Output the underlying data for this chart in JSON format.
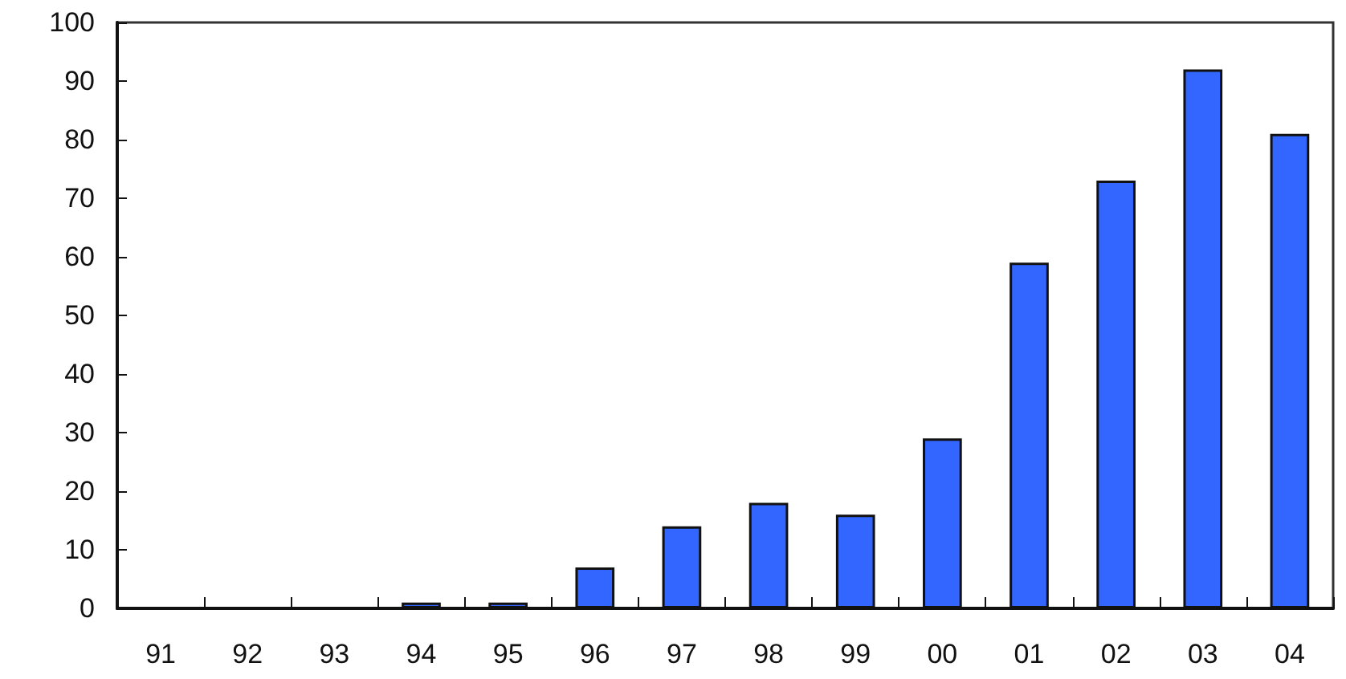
{
  "chart_data": {
    "type": "bar",
    "categories": [
      "91",
      "92",
      "93",
      "94",
      "95",
      "96",
      "97",
      "98",
      "99",
      "00",
      "01",
      "02",
      "03",
      "04"
    ],
    "values": [
      0,
      0,
      0,
      1,
      1,
      7,
      14,
      18,
      16,
      29,
      59,
      73,
      92,
      81
    ],
    "color": "#3366ff",
    "ylim": [
      0,
      100
    ],
    "yticks": [
      0,
      10,
      20,
      30,
      40,
      50,
      60,
      70,
      80,
      90,
      100
    ],
    "grid": false
  }
}
